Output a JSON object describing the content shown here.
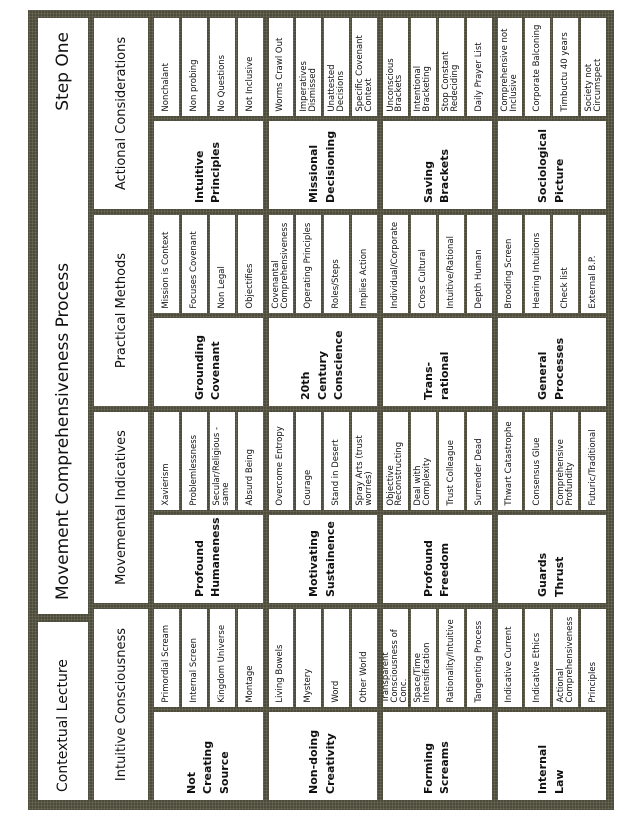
{
  "header": {
    "left": "Contextual Lecture",
    "title": "Movement Comprehensiveness Process",
    "step": "Step One"
  },
  "colors": {
    "border": "#4d4b3c",
    "cell": "#ffffff"
  },
  "columns": [
    {
      "header": "Intuitive Consciousness",
      "rows": [
        {
          "label": "Not Creating Source",
          "items": [
            "Primordial Scream",
            "Internal Screen",
            "Kingdom Universe",
            "Montage"
          ]
        },
        {
          "label": "Non-doing Creativity",
          "items": [
            "Living Bowels",
            "Mystery",
            "Word",
            "Other World"
          ]
        },
        {
          "label": "Forming Screams",
          "items": [
            "Transparent Consciousness of Conc.",
            "Space/Time Intensification",
            "Rationality/Intuitive",
            "Tangenting Process"
          ]
        },
        {
          "label": "Internal Law",
          "items": [
            "Indicative Current",
            "Indicative Ethics",
            "Actional Comprehensiveness",
            "Principles"
          ]
        }
      ]
    },
    {
      "header": "Movemental Indicatives",
      "rows": [
        {
          "label": "Profound Humaneness",
          "items": [
            "Xavierism",
            "Problemlessness",
            "Secular/Religious - same",
            "Absurd Being"
          ]
        },
        {
          "label": "Motivating Sustainence",
          "items": [
            "Overcome Entropy",
            "Courage",
            "Stand in Desert",
            "Spray Arts (trust worries)"
          ]
        },
        {
          "label": "Profound Freedom",
          "items": [
            "Objective Reconstructing",
            "Deal with Complexity",
            "Trust Colleague",
            "Surrender Dead"
          ]
        },
        {
          "label": "Guards Thrust",
          "items": [
            "Thwart Catastrophe",
            "Consensus Glue",
            "Comprehensive Profundity",
            "Futuric/Traditional"
          ]
        }
      ]
    },
    {
      "header": "Practical Methods",
      "rows": [
        {
          "label": "Grounding Covenant",
          "items": [
            "Mission is Context",
            "Focuses Covenant",
            "Non Legal",
            "Objectifies"
          ]
        },
        {
          "label": "20th Century Conscience",
          "items": [
            "Covenantal Comprehensiveness",
            "Operating Principles",
            "Roles/Steps",
            "Implies Action"
          ]
        },
        {
          "label": "Trans-rational",
          "items": [
            "Individual/Corporate",
            "Cross Cultural",
            "Intuitive/Rational",
            "Depth Human"
          ]
        },
        {
          "label": "General Processes",
          "items": [
            "Brooding Screen",
            "Hearing Intuitions",
            "Check list",
            "External B.P."
          ]
        }
      ]
    },
    {
      "header": "Actional Considerations",
      "rows": [
        {
          "label": "Intuitive Principles",
          "items": [
            "Nonchalant",
            "Non probing",
            "No Questions",
            "Not Inclusive"
          ]
        },
        {
          "label": "Missional Decisioning",
          "items": [
            "Worms Crawl Out",
            "Imperatives Dismissed",
            "Unattested Decisions",
            "Specific Covenant Context"
          ]
        },
        {
          "label": "Saving Brackets",
          "items": [
            "Unconscious Brackets",
            "Intentional Bracketing",
            "Stop Constant Redeciding",
            "Daily Prayer List"
          ]
        },
        {
          "label": "Sociological Picture",
          "items": [
            "Comprehensive not Inclusive",
            "Corporate Balconing",
            "Timbuctu 40 years",
            "Society not Circumspect"
          ]
        }
      ]
    }
  ]
}
